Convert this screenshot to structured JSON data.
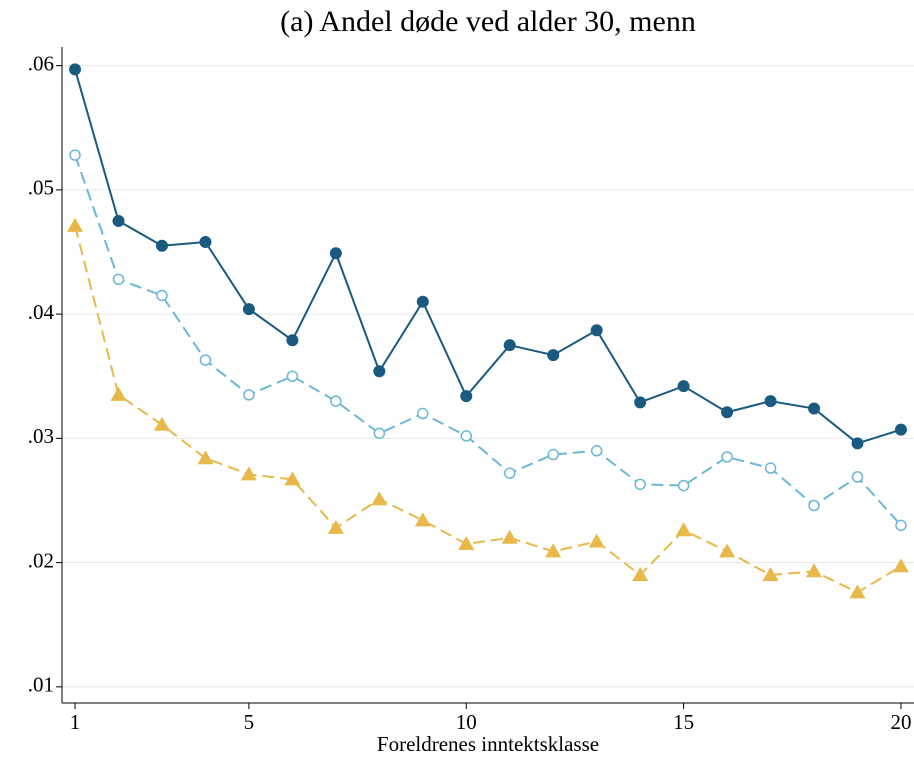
{
  "chart_data": {
    "type": "line",
    "title": "(a) Andel døde ved alder 30, menn",
    "x_label": "Foreldrenes inntektsklasse",
    "x": [
      1,
      2,
      3,
      4,
      5,
      6,
      7,
      8,
      9,
      10,
      11,
      12,
      13,
      14,
      15,
      16,
      17,
      18,
      19,
      20
    ],
    "series": [
      {
        "color": "#1a5a80",
        "marker": "circle-filled",
        "dash": false,
        "values": [
          0.0597,
          0.0475,
          0.0455,
          0.0458,
          0.0404,
          0.0379,
          0.0449,
          0.0354,
          0.041,
          0.0334,
          0.0375,
          0.0367,
          0.0387,
          0.0329,
          0.0342,
          0.0321,
          0.033,
          0.0324,
          0.0296,
          0.0307
        ]
      },
      {
        "color": "#6ab8d6",
        "marker": "circle-hollow",
        "dash": true,
        "values": [
          0.0528,
          0.0428,
          0.0415,
          0.0363,
          0.0335,
          0.035,
          0.033,
          0.0304,
          0.032,
          0.0302,
          0.0272,
          0.0287,
          0.029,
          0.0263,
          0.0262,
          0.0285,
          0.0276,
          0.0246,
          0.0269,
          0.023
        ]
      },
      {
        "color": "#e8b94a",
        "marker": "triangle",
        "dash": true,
        "values": [
          0.0471,
          0.0335,
          0.0311,
          0.0284,
          0.0271,
          0.0267,
          0.0228,
          0.0251,
          0.0234,
          0.0215,
          0.022,
          0.0209,
          0.0217,
          0.019,
          0.0226,
          0.0209,
          0.019,
          0.0193,
          0.0176,
          0.0197
        ]
      }
    ],
    "xlim": [
      0.7,
      20.3
    ],
    "xticks": [
      1,
      5,
      10,
      15,
      20
    ],
    "ylim": [
      0.0087,
      0.0615
    ],
    "yticks": [
      {
        "value": 0.01,
        "label": ".01"
      },
      {
        "value": 0.02,
        "label": ".02"
      },
      {
        "value": 0.03,
        "label": ".03"
      },
      {
        "value": 0.04,
        "label": ".04"
      },
      {
        "value": 0.05,
        "label": ".05"
      },
      {
        "value": 0.06,
        "label": ".06"
      }
    ],
    "grid": true
  }
}
